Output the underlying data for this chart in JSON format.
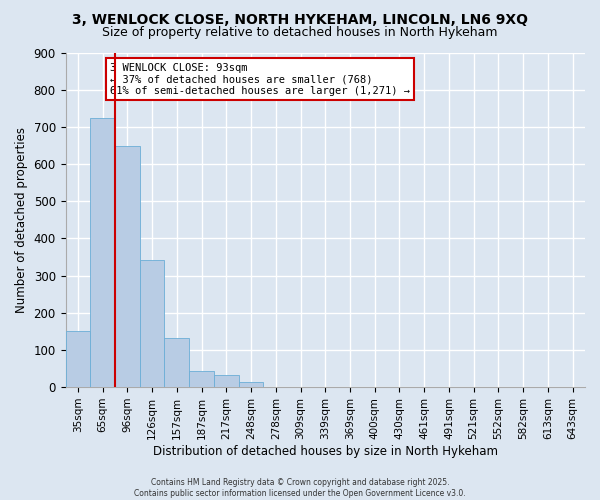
{
  "title": "3, WENLOCK CLOSE, NORTH HYKEHAM, LINCOLN, LN6 9XQ",
  "subtitle": "Size of property relative to detached houses in North Hykeham",
  "xlabel": "Distribution of detached houses by size in North Hykeham",
  "ylabel": "Number of detached properties",
  "bar_labels": [
    "35sqm",
    "65sqm",
    "96sqm",
    "126sqm",
    "157sqm",
    "187sqm",
    "217sqm",
    "248sqm",
    "278sqm",
    "309sqm",
    "339sqm",
    "369sqm",
    "400sqm",
    "430sqm",
    "461sqm",
    "491sqm",
    "521sqm",
    "552sqm",
    "582sqm",
    "613sqm",
    "643sqm"
  ],
  "bar_values": [
    152,
    725,
    648,
    342,
    132,
    42,
    32,
    14,
    0,
    0,
    0,
    0,
    0,
    0,
    0,
    0,
    0,
    0,
    0,
    0,
    0
  ],
  "bar_color": "#b8cce4",
  "bar_edge_color": "#6baed6",
  "vline_color": "#cc0000",
  "ylim": [
    0,
    900
  ],
  "yticks": [
    0,
    100,
    200,
    300,
    400,
    500,
    600,
    700,
    800,
    900
  ],
  "annotation_line1": "3 WENLOCK CLOSE: 93sqm",
  "annotation_line2": "← 37% of detached houses are smaller (768)",
  "annotation_line3": "61% of semi-detached houses are larger (1,271) →",
  "annotation_box_color": "#ffffff",
  "annotation_box_edge": "#cc0000",
  "background_color": "#dce6f1",
  "footer_line1": "Contains HM Land Registry data © Crown copyright and database right 2025.",
  "footer_line2": "Contains public sector information licensed under the Open Government Licence v3.0.",
  "grid_color": "#ffffff",
  "title_fontsize": 10,
  "subtitle_fontsize": 9
}
